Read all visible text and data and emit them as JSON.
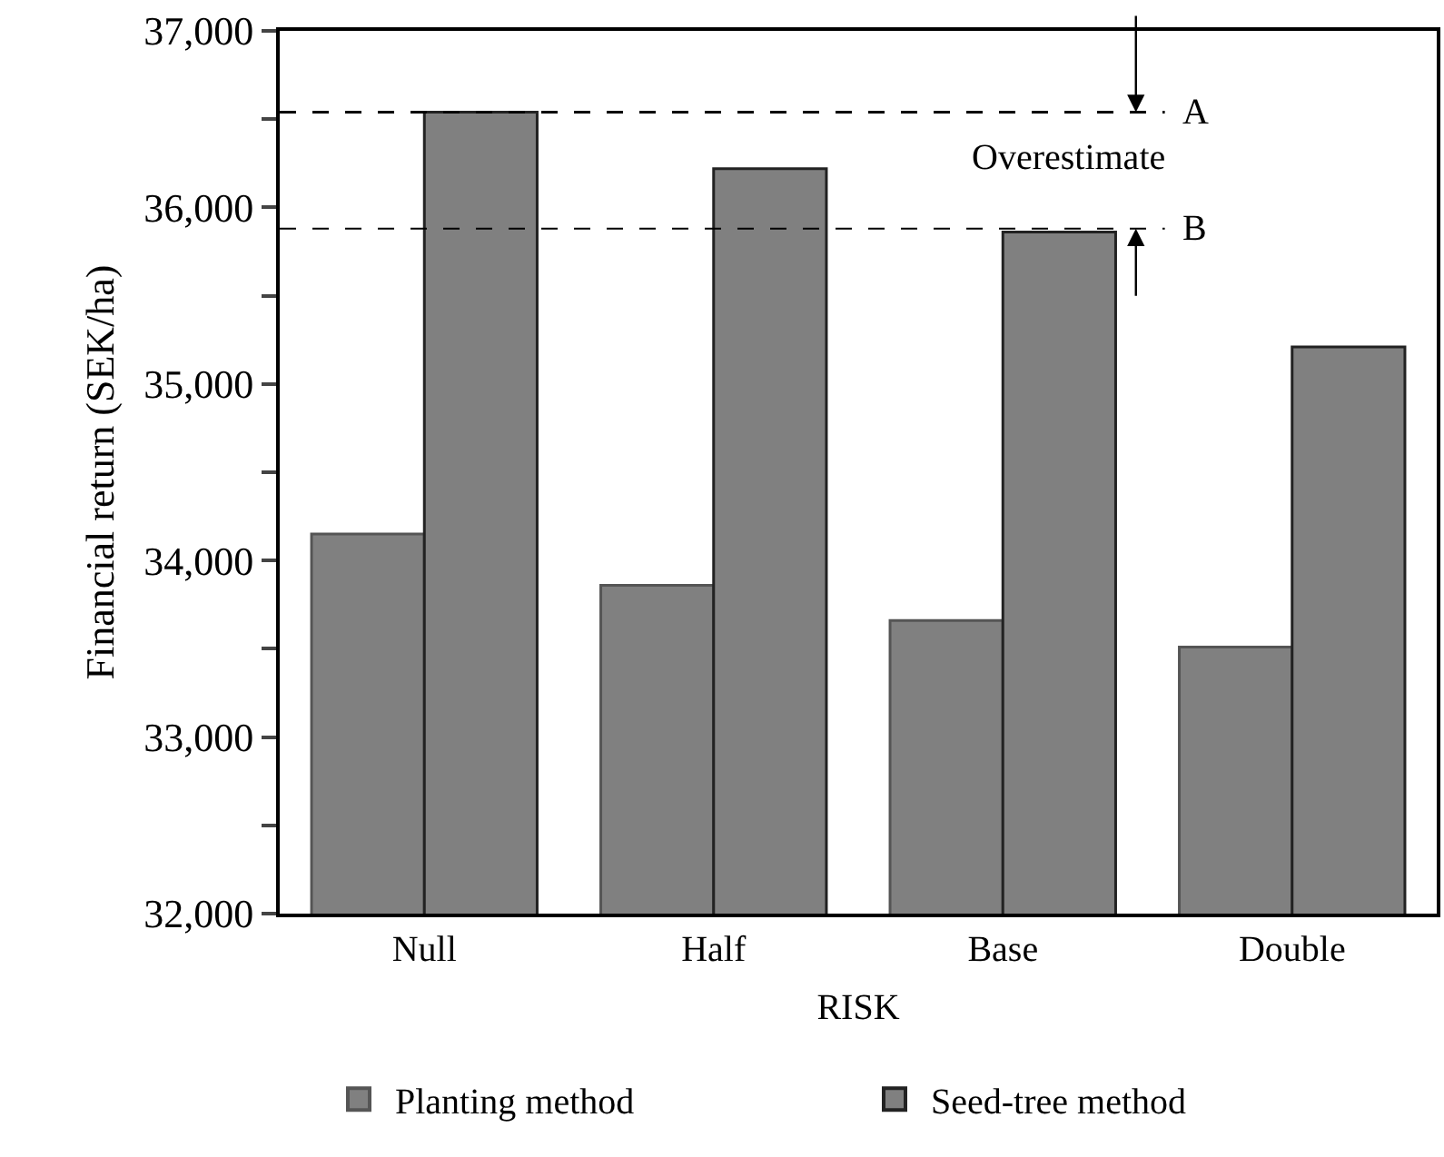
{
  "chart_data": {
    "type": "bar",
    "xlabel": "RISK",
    "ylabel": "Financial return (SEK/ha)",
    "categories": [
      "Null",
      "Half",
      "Base",
      "Double"
    ],
    "series": [
      {
        "name": "Planting method",
        "color": "#808080",
        "values": [
          34150,
          33860,
          33660,
          33510
        ]
      },
      {
        "name": "Seed-tree method",
        "color": "#808080",
        "values": [
          36540,
          36220,
          35860,
          35210
        ]
      }
    ],
    "ylim": [
      32000,
      37000
    ],
    "yticks": [
      {
        "value": 32000,
        "label": "32,000"
      },
      {
        "value": 32500,
        "label": null
      },
      {
        "value": 33000,
        "label": "33,000"
      },
      {
        "value": 33500,
        "label": null
      },
      {
        "value": 34000,
        "label": "34,000"
      },
      {
        "value": 34500,
        "label": null
      },
      {
        "value": 35000,
        "label": "35,000"
      },
      {
        "value": 35500,
        "label": null
      },
      {
        "value": 36000,
        "label": "36,000"
      },
      {
        "value": 36500,
        "label": null
      },
      {
        "value": 37000,
        "label": "37,000"
      }
    ],
    "ref_lines": [
      {
        "axis": "y",
        "value": 36540,
        "label": "A",
        "line_style": "dashed",
        "color": "#000000"
      },
      {
        "axis": "y",
        "value": 35880,
        "label": "B",
        "line_style": "dashed",
        "color": "#000000"
      }
    ],
    "annotations": [
      "Overestimate"
    ],
    "legend": "bottom"
  }
}
